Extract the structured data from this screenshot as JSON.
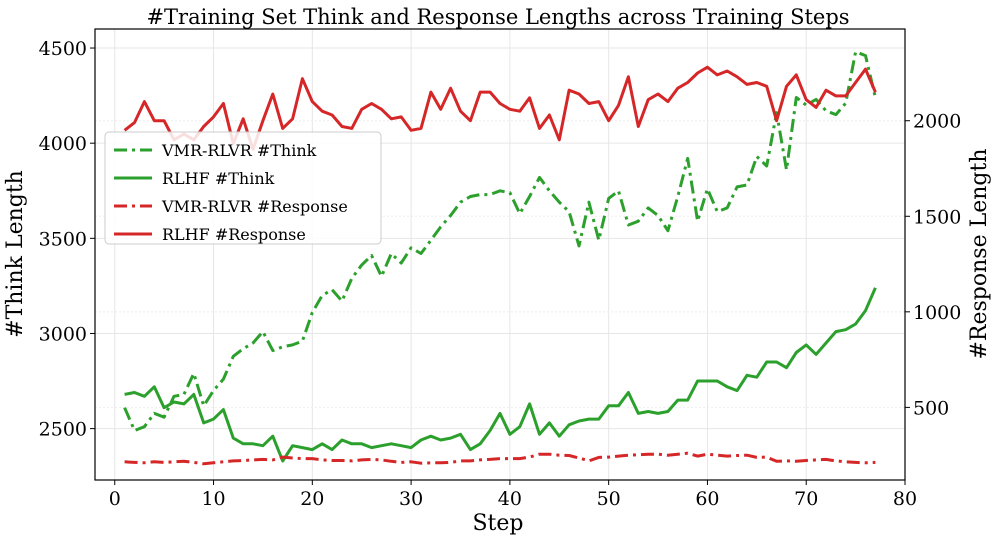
{
  "chart_data": {
    "type": "line",
    "title": "#Training Set Think and Response Lengths across Training Steps",
    "xlabel": "Step",
    "ylabel_left": "#Think Length",
    "ylabel_right": "#Response Length",
    "xlim": [
      -2,
      80
    ],
    "ylim_left": [
      2230,
      4600
    ],
    "ylim_right": [
      120,
      2480
    ],
    "xticks": [
      0,
      10,
      20,
      30,
      40,
      50,
      60,
      70,
      80
    ],
    "yticks_left": [
      2500,
      3000,
      3500,
      4000,
      4500
    ],
    "yticks_right": [
      500,
      1000,
      1500,
      2000
    ],
    "grid": true,
    "legend_position": "center-left",
    "x": [
      1,
      2,
      3,
      4,
      5,
      6,
      7,
      8,
      9,
      10,
      11,
      12,
      13,
      14,
      15,
      16,
      17,
      18,
      19,
      20,
      21,
      22,
      23,
      24,
      25,
      26,
      27,
      28,
      29,
      30,
      31,
      32,
      33,
      34,
      35,
      36,
      37,
      38,
      39,
      40,
      41,
      42,
      43,
      44,
      45,
      46,
      47,
      48,
      49,
      50,
      51,
      52,
      53,
      54,
      55,
      56,
      57,
      58,
      59,
      60,
      61,
      62,
      63,
      64,
      65,
      66,
      67,
      68,
      69,
      70,
      71,
      72,
      73,
      74,
      75,
      76,
      77
    ],
    "series": [
      {
        "name": "VMR-RLVR #Think",
        "axis": "left",
        "style": "dashdot",
        "color": "#2ca02c",
        "values": [
          2610,
          2490,
          2510,
          2580,
          2560,
          2670,
          2680,
          2790,
          2620,
          2700,
          2760,
          2880,
          2920,
          2950,
          3010,
          2910,
          2930,
          2940,
          2960,
          3110,
          3200,
          3230,
          3170,
          3290,
          3360,
          3410,
          3300,
          3420,
          3370,
          3450,
          3420,
          3490,
          3560,
          3620,
          3690,
          3720,
          3730,
          3730,
          3750,
          3740,
          3630,
          3720,
          3820,
          3750,
          3690,
          3640,
          3460,
          3690,
          3490,
          3710,
          3750,
          3570,
          3590,
          3660,
          3620,
          3540,
          3720,
          3920,
          3590,
          3760,
          3640,
          3660,
          3770,
          3780,
          3930,
          3880,
          4160,
          3860,
          4240,
          4200,
          4230,
          4170,
          4150,
          4210,
          4480,
          4460,
          4240
        ]
      },
      {
        "name": "RLHF #Think",
        "axis": "left",
        "style": "solid",
        "color": "#2ca02c",
        "values": [
          2680,
          2690,
          2670,
          2720,
          2610,
          2640,
          2630,
          2680,
          2530,
          2550,
          2600,
          2450,
          2420,
          2420,
          2410,
          2460,
          2330,
          2410,
          2400,
          2390,
          2420,
          2390,
          2440,
          2420,
          2420,
          2400,
          2410,
          2420,
          2410,
          2400,
          2440,
          2460,
          2440,
          2450,
          2470,
          2390,
          2420,
          2490,
          2580,
          2470,
          2510,
          2630,
          2470,
          2530,
          2460,
          2520,
          2540,
          2550,
          2550,
          2620,
          2620,
          2690,
          2580,
          2590,
          2580,
          2590,
          2650,
          2650,
          2750,
          2750,
          2750,
          2720,
          2700,
          2780,
          2770,
          2850,
          2850,
          2820,
          2900,
          2940,
          2890,
          2950,
          3010,
          3020,
          3050,
          3120,
          3240
        ]
      },
      {
        "name": "VMR-RLVR #Response",
        "axis": "right",
        "style": "dashdot",
        "color": "#d62728",
        "values": [
          215,
          212,
          210,
          215,
          212,
          215,
          218,
          212,
          205,
          210,
          215,
          220,
          222,
          225,
          228,
          225,
          240,
          235,
          232,
          232,
          225,
          222,
          222,
          220,
          225,
          228,
          225,
          218,
          212,
          215,
          208,
          210,
          210,
          212,
          220,
          220,
          225,
          228,
          232,
          232,
          232,
          240,
          255,
          255,
          250,
          248,
          235,
          220,
          238,
          240,
          245,
          250,
          252,
          255,
          255,
          250,
          255,
          260,
          245,
          255,
          250,
          245,
          248,
          250,
          238,
          240,
          218,
          220,
          218,
          222,
          225,
          228,
          220,
          215,
          212,
          210,
          212
        ]
      },
      {
        "name": "RLHF #Response",
        "axis": "right",
        "style": "solid",
        "color": "#d62728",
        "values": [
          1950,
          1990,
          2100,
          2000,
          2000,
          1900,
          1930,
          1900,
          1970,
          2020,
          2090,
          1880,
          2010,
          1850,
          2000,
          2140,
          1960,
          2010,
          2220,
          2100,
          2050,
          2030,
          1970,
          1960,
          2060,
          2090,
          2060,
          2010,
          2020,
          1950,
          1960,
          2150,
          2060,
          2170,
          2050,
          2000,
          2150,
          2150,
          2090,
          2060,
          2050,
          2120,
          1960,
          2030,
          1900,
          2160,
          2140,
          2090,
          2100,
          2000,
          2080,
          2230,
          1970,
          2110,
          2140,
          2100,
          2170,
          2200,
          2250,
          2280,
          2240,
          2260,
          2230,
          2190,
          2200,
          2180,
          2000,
          2180,
          2240,
          2110,
          2070,
          2160,
          2130,
          2130,
          2200,
          2270,
          2150
        ]
      }
    ]
  }
}
